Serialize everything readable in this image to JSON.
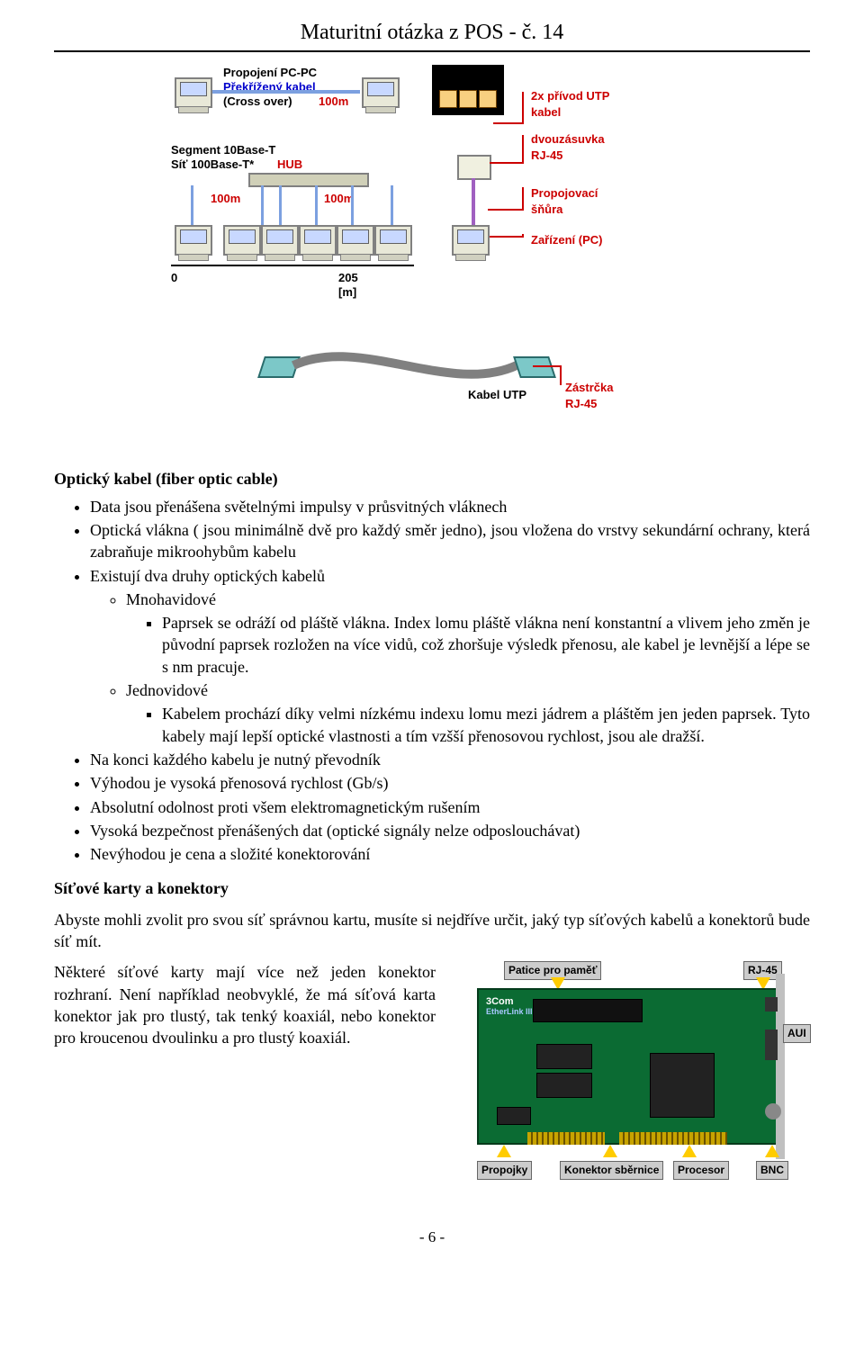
{
  "page": {
    "title": "Maturitní otázka z POS - č. 14",
    "footer": "- 6 -"
  },
  "fig_topology": {
    "line1": "Propojení PC-PC",
    "line2": "Překřížený kabel",
    "cross_over": "(Cross over)",
    "dist100m": "100m",
    "segA": "Segment 10Base-T",
    "segB": "Síť 100Base-T*",
    "hub": "HUB",
    "zero": "0",
    "axis_205": "205",
    "axis_unit": "[m]",
    "cbl_2xutp": "2x přívod UTP\nkabel",
    "cbl_dvouzas": "dvouzásuvka\nRJ-45",
    "cbl_prop": "Propojovací\nšňůra",
    "cbl_zarizeni": "Zařízení (PC)",
    "cable_utp": "Kabel UTP",
    "cable_plug": "Zástrčka\nRJ-45"
  },
  "section_optical": {
    "heading": "Optický kabel (fiber optic cable)",
    "b1": "Data jsou přenášena světelnými impulsy v průsvitných vláknech",
    "b2": "Optická vlákna ( jsou minimálně dvě pro každý směr jedno), jsou vložena do vrstvy sekundární ochrany, která zabraňuje mikroohybům kabelu",
    "b3": "Existují dva druhy optických kabelů",
    "s1": "Mnohavidové",
    "s1d": "Paprsek se odráží od pláště vlákna. Index lomu pláště vlákna není konstantní a vlivem jeho změn je původní paprsek rozložen na více vidů, což zhoršuje výsledk přenosu, ale kabel je levnější a lépe se s nm pracuje.",
    "s2": "Jednovidové",
    "s2d": "Kabelem prochází díky velmi nízkému indexu lomu mezi jádrem a pláštěm jen jeden paprsek. Tyto kabely mají lepší optické vlastnosti a tím vzšší přenosovou rychlost, jsou ale dražší.",
    "b4": "Na konci každého kabelu je nutný převodník",
    "b5": "Výhodou je vysoká přenosová rychlost (Gb/s)",
    "b6": "Absolutní odolnost proti všem elektromagnetickým rušením",
    "b7": "Vysoká bezpečnost přenášených dat (optické signály nelze odposlouchávat)",
    "b8": "Nevýhodou je cena a složité konektorování"
  },
  "section_cards": {
    "heading": "Síťové karty a konektory",
    "p1": "Abyste mohli zvolit pro svou síť správnou kartu, musíte si nejdříve určit, jaký typ síťových kabelů a konektorů bude síť mít.",
    "p2": "Některé síťové karty mají více než jeden konektor rozhraní. Není například neobvyklé, že má síťová karta konektor jak pro tlustý, tak tenký koaxiál, nebo konektor pro kroucenou dvoulinku a pro tlustý koaxiál."
  },
  "fig_card": {
    "mem": "Patice pro paměť",
    "rj45": "RJ-45",
    "aui": "AUI",
    "bnc": "BNC",
    "jumpers": "Propojky",
    "busconn": "Konektor sběrnice",
    "cpu": "Procesor",
    "vendor": "3Com",
    "model": "EtherLink III"
  },
  "colors": {
    "bg": "#ffffff",
    "text": "#000000",
    "red": "#cc0000",
    "blue": "#0000cc",
    "pcb": "#0b6b33",
    "pcb_border": "#043a1b",
    "labelbox_bg": "#cccccc",
    "arrow": "#ffcc00"
  }
}
